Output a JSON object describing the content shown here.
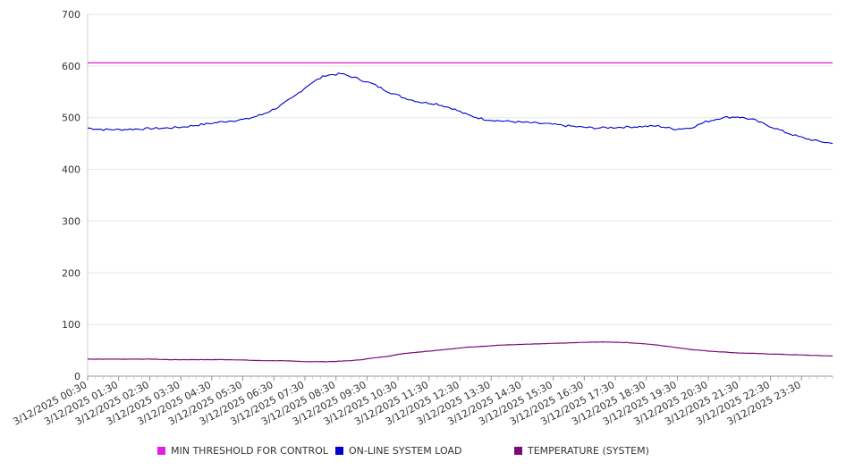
{
  "chart_data": {
    "type": "line",
    "title": "",
    "xlabel": "",
    "ylabel": "",
    "ylim": [
      0,
      700
    ],
    "yticks": [
      0,
      100,
      200,
      300,
      400,
      500,
      600,
      700
    ],
    "x_tick_labels": [
      "3/12/2025 00:30",
      "3/12/2025 01:30",
      "3/12/2025 02:30",
      "3/12/2025 03:30",
      "3/12/2025 04:30",
      "3/12/2025 05:30",
      "3/12/2025 06:30",
      "3/12/2025 07:30",
      "3/12/2025 08:30",
      "3/12/2025 09:30",
      "3/12/2025 10:30",
      "3/12/2025 11:30",
      "3/12/2025 12:30",
      "3/12/2025 13:30",
      "3/12/2025 14:30",
      "3/12/2025 15:30",
      "3/12/2025 16:30",
      "3/12/2025 17:30",
      "3/12/2025 18:30",
      "3/12/2025 19:30",
      "3/12/2025 20:30",
      "3/12/2025 21:30",
      "3/12/2025 22:30",
      "3/12/2025 23:30"
    ],
    "x": [
      "00:30",
      "01:00",
      "01:30",
      "02:00",
      "02:30",
      "03:00",
      "03:30",
      "04:00",
      "04:30",
      "05:00",
      "05:30",
      "06:00",
      "06:30",
      "07:00",
      "07:30",
      "08:00",
      "08:30",
      "09:00",
      "09:30",
      "10:00",
      "10:30",
      "11:00",
      "11:30",
      "12:00",
      "12:30",
      "13:00",
      "13:30",
      "14:00",
      "14:30",
      "15:00",
      "15:30",
      "16:00",
      "16:30",
      "17:00",
      "17:30",
      "18:00",
      "18:30",
      "19:00",
      "19:30",
      "20:00",
      "20:30",
      "21:00",
      "21:30",
      "22:00",
      "22:30",
      "23:00",
      "23:30",
      "24:00"
    ],
    "grid": true,
    "legend_position": "bottom",
    "series": [
      {
        "name": "MIN THRESHOLD FOR CONTROL",
        "color": "#e020e0",
        "values": [
          606,
          606,
          606,
          606,
          606,
          606,
          606,
          606,
          606,
          606,
          606,
          606,
          606,
          606,
          606,
          606,
          606,
          606,
          606,
          606,
          606,
          606,
          606,
          606,
          606,
          606,
          606,
          606,
          606,
          606,
          606,
          606,
          606,
          606,
          606,
          606,
          606,
          606,
          606,
          606,
          606,
          606,
          606,
          606,
          606,
          606,
          606,
          606
        ]
      },
      {
        "name": "ON-LINE SYSTEM LOAD",
        "color": "#0000cc",
        "values": [
          480,
          477,
          477,
          478,
          479,
          480,
          482,
          486,
          490,
          494,
          497,
          506,
          520,
          540,
          565,
          582,
          585,
          576,
          565,
          550,
          538,
          530,
          527,
          518,
          505,
          497,
          494,
          492,
          490,
          488,
          485,
          482,
          480,
          481,
          482,
          483,
          484,
          478,
          480,
          492,
          500,
          502,
          496,
          484,
          472,
          462,
          455,
          450
        ]
      }
    ],
    "temperature_series": {
      "name": "TEMPERATURE (SYSTEM)",
      "color": "#7a0a7a",
      "values": [
        33,
        33,
        33,
        33,
        33,
        32,
        32,
        32,
        32,
        32,
        31,
        30,
        30,
        29,
        28,
        28,
        29,
        31,
        35,
        39,
        44,
        47,
        50,
        53,
        56,
        58,
        60,
        61,
        62,
        63,
        64,
        65,
        66,
        66,
        65,
        63,
        60,
        56,
        52,
        49,
        47,
        45,
        44,
        43,
        42,
        41,
        40,
        39
      ]
    }
  },
  "legend": {
    "items": [
      {
        "label": "MIN THRESHOLD FOR CONTROL",
        "color": "#e020e0"
      },
      {
        "label": "ON-LINE SYSTEM LOAD",
        "color": "#0000cc"
      },
      {
        "label": "TEMPERATURE (SYSTEM)",
        "color": "#7a0a7a"
      }
    ]
  }
}
